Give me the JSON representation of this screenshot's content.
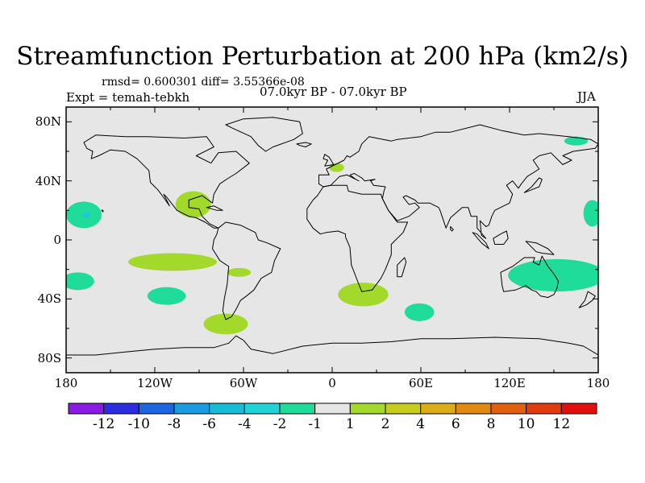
{
  "title": "Streamfunction Perturbation at 200 hPa (km2/s)",
  "stats_text": "rmsd= 0.600301 diff= 3.55366e-08",
  "experiment_text": "Expt = temah-tebkh",
  "period_text": "07.0kyr BP - 07.0kyr BP",
  "season": "JJA",
  "lat_labels": [
    {
      "text": "80N",
      "lat": 80
    },
    {
      "text": "40N",
      "lat": 40
    },
    {
      "text": "0",
      "lat": 0
    },
    {
      "text": "40S",
      "lat": -40
    },
    {
      "text": "80S",
      "lat": -80
    }
  ],
  "lon_labels": [
    {
      "text": "180",
      "lon": -180
    },
    {
      "text": "120W",
      "lon": -120
    },
    {
      "text": "60W",
      "lon": -60
    },
    {
      "text": "0",
      "lon": 0
    },
    {
      "text": "60E",
      "lon": 60
    },
    {
      "text": "120E",
      "lon": 120
    },
    {
      "text": "180",
      "lon": 180
    }
  ],
  "colors": {
    "ocean_background": "#e6e6e6",
    "coastline": "#000000",
    "positive_fill": "#a3d92a",
    "negative_fill": "#1fdc9a",
    "negative_core": "#22c7d6"
  },
  "colorbar": {
    "levels": [
      "-12",
      "-10",
      "-8",
      "-6",
      "-4",
      "-2",
      "-1",
      "1",
      "2",
      "4",
      "6",
      "8",
      "10",
      "12"
    ],
    "colors": [
      "#8a1be0",
      "#2c2ce0",
      "#1c67e0",
      "#1b9be0",
      "#17bcd6",
      "#20d3d6",
      "#1fdc9a",
      "#e6e6e6",
      "#a3d92a",
      "#c8cc1c",
      "#dcad16",
      "#e08a12",
      "#e06010",
      "#e03c0d",
      "#e01010"
    ]
  },
  "anomaly_regions": [
    {
      "name": "central-america-positive",
      "sign": "positive",
      "lon": -94,
      "lat": 24,
      "rx_deg": 12,
      "ry_deg": 9
    },
    {
      "name": "western-europe-positive",
      "sign": "positive",
      "lon": 3,
      "lat": 49,
      "rx_deg": 5,
      "ry_deg": 3
    },
    {
      "name": "south-pacific-positive",
      "sign": "positive",
      "lon": -108,
      "lat": -15,
      "rx_deg": 30,
      "ry_deg": 6
    },
    {
      "name": "south-america-east-positive",
      "sign": "positive",
      "lon": -63,
      "lat": -22,
      "rx_deg": 8,
      "ry_deg": 3
    },
    {
      "name": "south-atlantic-positive",
      "sign": "positive",
      "lon": -72,
      "lat": -57,
      "rx_deg": 15,
      "ry_deg": 7
    },
    {
      "name": "south-africa-positive",
      "sign": "positive",
      "lon": 21,
      "lat": -37,
      "rx_deg": 17,
      "ry_deg": 8
    },
    {
      "name": "central-pacific-negative",
      "sign": "negative",
      "lon": -168,
      "lat": 17,
      "rx_deg": 12,
      "ry_deg": 9
    },
    {
      "name": "east-asia-negative",
      "sign": "negative",
      "lon": 165,
      "lat": 67,
      "rx_deg": 8,
      "ry_deg": 3
    },
    {
      "name": "west-pacific-negative",
      "sign": "negative",
      "lon": 176,
      "lat": 18,
      "rx_deg": 6,
      "ry_deg": 9
    },
    {
      "name": "southwest-pacific-negative",
      "sign": "negative",
      "lon": -172,
      "lat": -28,
      "rx_deg": 11,
      "ry_deg": 6
    },
    {
      "name": "southeast-pacific-negative",
      "sign": "negative",
      "lon": -112,
      "lat": -38,
      "rx_deg": 13,
      "ry_deg": 6
    },
    {
      "name": "south-indian-negative",
      "sign": "negative",
      "lon": 59,
      "lat": -49,
      "rx_deg": 10,
      "ry_deg": 6
    },
    {
      "name": "australia-negative",
      "sign": "negative",
      "lon": 152,
      "lat": -24,
      "rx_deg": 33,
      "ry_deg": 11
    }
  ],
  "continents": [
    {
      "name": "north-america",
      "points": [
        [
          -168,
          66
        ],
        [
          -160,
          71
        ],
        [
          -140,
          70
        ],
        [
          -125,
          70
        ],
        [
          -100,
          69
        ],
        [
          -85,
          70
        ],
        [
          -80,
          63
        ],
        [
          -92,
          57
        ],
        [
          -82,
          52
        ],
        [
          -77,
          59
        ],
        [
          -65,
          60
        ],
        [
          -56,
          52
        ],
        [
          -65,
          45
        ],
        [
          -70,
          42
        ],
        [
          -76,
          38
        ],
        [
          -80,
          31
        ],
        [
          -81,
          25
        ],
        [
          -88,
          30
        ],
        [
          -97,
          27
        ],
        [
          -97,
          22
        ],
        [
          -90,
          21
        ],
        [
          -88,
          16
        ],
        [
          -83,
          11
        ],
        [
          -77,
          8
        ],
        [
          -80,
          8
        ],
        [
          -86,
          12
        ],
        [
          -92,
          15
        ],
        [
          -97,
          16
        ],
        [
          -105,
          20
        ],
        [
          -112,
          29
        ],
        [
          -114,
          31
        ],
        [
          -110,
          23
        ],
        [
          -115,
          30
        ],
        [
          -118,
          34
        ],
        [
          -123,
          39
        ],
        [
          -124,
          47
        ],
        [
          -132,
          55
        ],
        [
          -140,
          60
        ],
        [
          -150,
          61
        ],
        [
          -158,
          57
        ],
        [
          -163,
          55
        ],
        [
          -162,
          60
        ],
        [
          -166,
          62
        ]
      ]
    },
    {
      "name": "greenland",
      "points": [
        [
          -72,
          78
        ],
        [
          -60,
          82
        ],
        [
          -40,
          83
        ],
        [
          -22,
          80
        ],
        [
          -20,
          72
        ],
        [
          -26,
          68
        ],
        [
          -40,
          63
        ],
        [
          -45,
          60
        ],
        [
          -50,
          64
        ],
        [
          -55,
          70
        ],
        [
          -68,
          76
        ]
      ]
    },
    {
      "name": "south-america",
      "points": [
        [
          -77,
          8
        ],
        [
          -72,
          12
        ],
        [
          -62,
          10
        ],
        [
          -52,
          5
        ],
        [
          -50,
          0
        ],
        [
          -44,
          -2
        ],
        [
          -35,
          -6
        ],
        [
          -39,
          -14
        ],
        [
          -41,
          -22
        ],
        [
          -48,
          -26
        ],
        [
          -53,
          -34
        ],
        [
          -58,
          -38
        ],
        [
          -62,
          -41
        ],
        [
          -65,
          -47
        ],
        [
          -68,
          -52
        ],
        [
          -72,
          -54
        ],
        [
          -74,
          -48
        ],
        [
          -73,
          -40
        ],
        [
          -71,
          -30
        ],
        [
          -70,
          -18
        ],
        [
          -76,
          -14
        ],
        [
          -81,
          -6
        ],
        [
          -80,
          0
        ],
        [
          -78,
          4
        ]
      ]
    },
    {
      "name": "eurasia",
      "points": [
        [
          -9,
          38
        ],
        [
          -9,
          44
        ],
        [
          -2,
          44
        ],
        [
          -4,
          48
        ],
        [
          2,
          51
        ],
        [
          8,
          54
        ],
        [
          10,
          57
        ],
        [
          12,
          56
        ],
        [
          18,
          60
        ],
        [
          20,
          65
        ],
        [
          25,
          70
        ],
        [
          40,
          67
        ],
        [
          44,
          68
        ],
        [
          60,
          70
        ],
        [
          70,
          73
        ],
        [
          80,
          73
        ],
        [
          100,
          78
        ],
        [
          115,
          74
        ],
        [
          130,
          71
        ],
        [
          140,
          72
        ],
        [
          160,
          70
        ],
        [
          175,
          68
        ],
        [
          180,
          65
        ],
        [
          178,
          62
        ],
        [
          163,
          60
        ],
        [
          156,
          57
        ],
        [
          162,
          54
        ],
        [
          156,
          51
        ],
        [
          148,
          59
        ],
        [
          140,
          57
        ],
        [
          136,
          54
        ],
        [
          140,
          48
        ],
        [
          132,
          43
        ],
        [
          128,
          38
        ],
        [
          126,
          35
        ],
        [
          122,
          40
        ],
        [
          118,
          37
        ],
        [
          122,
          31
        ],
        [
          120,
          25
        ],
        [
          110,
          20
        ],
        [
          108,
          16
        ],
        [
          106,
          10
        ],
        [
          104,
          9
        ],
        [
          100,
          13
        ],
        [
          101,
          3
        ],
        [
          104,
          1
        ],
        [
          98,
          8
        ],
        [
          98,
          16
        ],
        [
          94,
          16
        ],
        [
          92,
          22
        ],
        [
          88,
          22
        ],
        [
          80,
          15
        ],
        [
          77,
          8
        ],
        [
          73,
          20
        ],
        [
          72,
          22
        ],
        [
          66,
          25
        ],
        [
          58,
          25
        ],
        [
          56,
          27
        ],
        [
          50,
          30
        ],
        [
          48,
          29
        ],
        [
          52,
          24
        ],
        [
          56,
          25
        ],
        [
          59,
          22
        ],
        [
          52,
          16
        ],
        [
          44,
          13
        ],
        [
          38,
          20
        ],
        [
          34,
          28
        ],
        [
          35,
          33
        ],
        [
          36,
          36
        ],
        [
          28,
          37
        ],
        [
          26,
          40
        ],
        [
          29,
          41
        ],
        [
          22,
          40
        ],
        [
          20,
          42
        ],
        [
          15,
          45
        ],
        [
          12,
          44
        ],
        [
          16,
          41
        ],
        [
          18,
          40
        ],
        [
          10,
          44
        ],
        [
          5,
          43
        ],
        [
          -1,
          37
        ],
        [
          -6,
          36
        ]
      ]
    },
    {
      "name": "africa",
      "points": [
        [
          -6,
          36
        ],
        [
          -1,
          37
        ],
        [
          10,
          37
        ],
        [
          11,
          33
        ],
        [
          20,
          31
        ],
        [
          30,
          31
        ],
        [
          33,
          31
        ],
        [
          34,
          28
        ],
        [
          38,
          20
        ],
        [
          44,
          12
        ],
        [
          51,
          12
        ],
        [
          48,
          5
        ],
        [
          40,
          -3
        ],
        [
          40,
          -10
        ],
        [
          36,
          -20
        ],
        [
          33,
          -26
        ],
        [
          27,
          -34
        ],
        [
          20,
          -35
        ],
        [
          18,
          -30
        ],
        [
          13,
          -17
        ],
        [
          12,
          -5
        ],
        [
          9,
          2
        ],
        [
          9,
          4
        ],
        [
          4,
          6
        ],
        [
          -4,
          5
        ],
        [
          -8,
          4
        ],
        [
          -13,
          8
        ],
        [
          -17,
          14
        ],
        [
          -17,
          21
        ],
        [
          -13,
          27
        ],
        [
          -10,
          30
        ]
      ]
    },
    {
      "name": "australia",
      "points": [
        [
          114,
          -22
        ],
        [
          122,
          -18
        ],
        [
          130,
          -12
        ],
        [
          137,
          -12
        ],
        [
          136,
          -15
        ],
        [
          140,
          -17
        ],
        [
          142,
          -11
        ],
        [
          146,
          -18
        ],
        [
          150,
          -23
        ],
        [
          153,
          -28
        ],
        [
          152,
          -33
        ],
        [
          150,
          -37
        ],
        [
          146,
          -39
        ],
        [
          141,
          -38
        ],
        [
          138,
          -35
        ],
        [
          135,
          -34
        ],
        [
          131,
          -31
        ],
        [
          124,
          -34
        ],
        [
          116,
          -35
        ],
        [
          115,
          -31
        ]
      ]
    },
    {
      "name": "antarctica",
      "points": [
        [
          -180,
          -90
        ],
        [
          180,
          -90
        ],
        [
          180,
          -78
        ],
        [
          170,
          -72
        ],
        [
          160,
          -70
        ],
        [
          140,
          -67
        ],
        [
          110,
          -66
        ],
        [
          80,
          -67
        ],
        [
          60,
          -67
        ],
        [
          40,
          -69
        ],
        [
          20,
          -70
        ],
        [
          0,
          -70
        ],
        [
          -20,
          -72
        ],
        [
          -40,
          -77
        ],
        [
          -55,
          -74
        ],
        [
          -60,
          -68
        ],
        [
          -65,
          -65
        ],
        [
          -70,
          -70
        ],
        [
          -80,
          -73
        ],
        [
          -100,
          -73
        ],
        [
          -120,
          -74
        ],
        [
          -140,
          -76
        ],
        [
          -160,
          -78
        ],
        [
          -180,
          -78
        ]
      ]
    },
    {
      "name": "madagascar",
      "points": [
        [
          44,
          -25
        ],
        [
          47,
          -25
        ],
        [
          50,
          -15
        ],
        [
          49,
          -12
        ],
        [
          44,
          -17
        ]
      ]
    },
    {
      "name": "british-isles",
      "points": [
        [
          -5,
          50
        ],
        [
          1,
          51
        ],
        [
          -2,
          56
        ],
        [
          -5,
          58
        ],
        [
          -6,
          55
        ],
        [
          -3,
          54
        ]
      ]
    },
    {
      "name": "japan",
      "points": [
        [
          130,
          32
        ],
        [
          135,
          34
        ],
        [
          140,
          36
        ],
        [
          142,
          41
        ],
        [
          140,
          42
        ],
        [
          135,
          36
        ]
      ]
    },
    {
      "name": "borneo",
      "points": [
        [
          109,
          1
        ],
        [
          114,
          4
        ],
        [
          118,
          6
        ],
        [
          119,
          1
        ],
        [
          116,
          -3
        ],
        [
          110,
          -3
        ]
      ]
    },
    {
      "name": "sumatra",
      "points": [
        [
          95,
          5
        ],
        [
          98,
          4
        ],
        [
          104,
          -2
        ],
        [
          106,
          -6
        ],
        [
          101,
          -2
        ]
      ]
    },
    {
      "name": "new-guinea",
      "points": [
        [
          131,
          -1
        ],
        [
          138,
          -2
        ],
        [
          146,
          -6
        ],
        [
          150,
          -10
        ],
        [
          142,
          -9
        ],
        [
          138,
          -8
        ]
      ]
    },
    {
      "name": "new-zealand",
      "points": [
        [
          173,
          -35
        ],
        [
          178,
          -38
        ],
        [
          176,
          -41
        ],
        [
          172,
          -44
        ],
        [
          167,
          -46
        ],
        [
          171,
          -41
        ]
      ]
    },
    {
      "name": "iceland",
      "points": [
        [
          -24,
          65
        ],
        [
          -18,
          66
        ],
        [
          -14,
          65
        ],
        [
          -18,
          63
        ],
        [
          -22,
          64
        ]
      ]
    },
    {
      "name": "cuba",
      "points": [
        [
          -85,
          22
        ],
        [
          -80,
          23
        ],
        [
          -74,
          20
        ],
        [
          -78,
          20
        ]
      ]
    },
    {
      "name": "sri-lanka",
      "points": [
        [
          80,
          9
        ],
        [
          82,
          7
        ],
        [
          81,
          6
        ],
        [
          80,
          7
        ]
      ]
    },
    {
      "name": "hawaii",
      "points": [
        [
          -156,
          20
        ],
        [
          -155,
          19
        ],
        [
          -155,
          20
        ]
      ]
    }
  ]
}
